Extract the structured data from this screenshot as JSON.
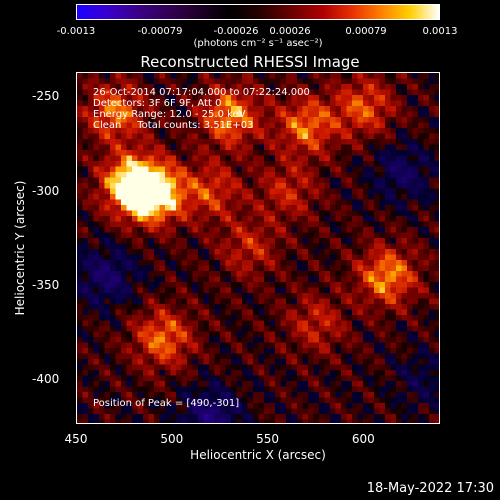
{
  "colorbar": {
    "ticks": [
      "-0.0013",
      "-0.00079",
      "-0.00026",
      "0.00026",
      "0.00079",
      "0.0013"
    ],
    "unit": "(photons cm⁻² s⁻¹ asec⁻²)"
  },
  "info": {
    "line1": "26-Oct-2014 07:17:04.000 to 07:22:24.000",
    "line2": "Detectors: 3F 6F 9F, Att 0",
    "line3": "Energy Range: 12.0 - 25.0 keV",
    "line4": "Clean     Total counts: 3.51E+03",
    "peak": "Position of Peak = [490,-301]"
  },
  "footer": {
    "date": "18-May-2022 17:30"
  },
  "chart_data": {
    "type": "heatmap",
    "title": "Reconstructed RHESSI Image",
    "xlabel": "Heliocentric X (arcsec)",
    "ylabel": "Heliocentric Y (arcsec)",
    "xlim": [
      450,
      640
    ],
    "ylim": [
      -424,
      -237
    ],
    "xticks": [
      "450",
      "500",
      "550",
      "600"
    ],
    "xtick_values": [
      450,
      500,
      550,
      600
    ],
    "yticks": [
      "-250",
      "-300",
      "-350",
      "-400"
    ],
    "ytick_values": [
      -250,
      -300,
      -350,
      -400
    ],
    "color_range": [
      -0.0013,
      0.0013
    ],
    "peak": [
      490,
      -301
    ],
    "features": [
      {
        "x": 490,
        "y": -301,
        "value": 0.0013
      },
      {
        "x": 478,
        "y": -296,
        "value": 0.0011
      },
      {
        "x": 470,
        "y": -258,
        "value": 0.0008
      },
      {
        "x": 530,
        "y": -260,
        "value": 0.0009
      },
      {
        "x": 570,
        "y": -265,
        "value": 0.0008
      },
      {
        "x": 600,
        "y": -255,
        "value": 0.0007
      },
      {
        "x": 612,
        "y": -345,
        "value": 0.0009
      },
      {
        "x": 495,
        "y": -378,
        "value": 0.0008
      },
      {
        "x": 540,
        "y": -330,
        "value": 0.0005
      },
      {
        "x": 575,
        "y": -370,
        "value": 0.0005
      },
      {
        "x": 520,
        "y": -300,
        "value": 0.0006
      },
      {
        "x": 560,
        "y": -300,
        "value": 0.0005
      },
      {
        "x": 465,
        "y": -345,
        "value": -0.0006
      },
      {
        "x": 520,
        "y": -420,
        "value": -0.0007
      },
      {
        "x": 620,
        "y": -290,
        "value": -0.0005
      },
      {
        "x": 630,
        "y": -400,
        "value": -0.0003
      }
    ]
  }
}
